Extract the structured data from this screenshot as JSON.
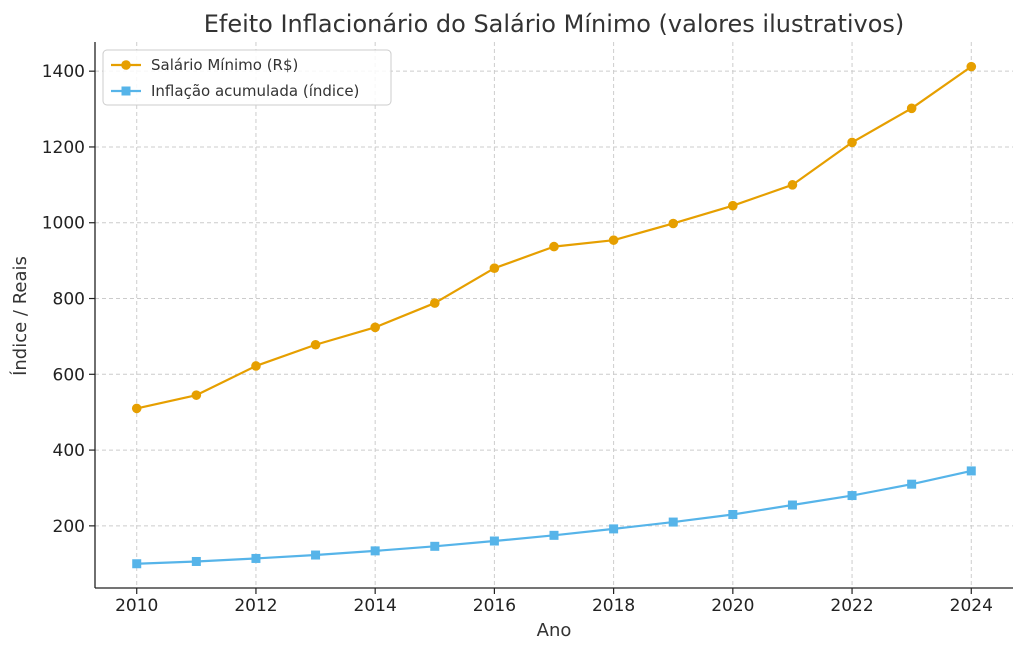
{
  "chart_data": {
    "type": "line",
    "title": "Efeito Inflacionário do Salário Mínimo (valores ilustrativos)",
    "xlabel": "Ano",
    "ylabel": "Índice / Reais",
    "x": [
      2010,
      2011,
      2012,
      2013,
      2014,
      2015,
      2016,
      2017,
      2018,
      2019,
      2020,
      2021,
      2022,
      2023,
      2024
    ],
    "xticks": [
      2010,
      2012,
      2014,
      2016,
      2018,
      2020,
      2022,
      2024
    ],
    "yticks": [
      200,
      400,
      600,
      800,
      1000,
      1200,
      1400
    ],
    "xlim": [
      2009.3,
      2024.7
    ],
    "ylim": [
      36,
      1477
    ],
    "grid": true,
    "legend_position": "top-left",
    "series": [
      {
        "name": "Salário Mínimo (R$)",
        "color": "#E69F00",
        "marker": "circle",
        "values": [
          510,
          545,
          622,
          678,
          724,
          788,
          880,
          937,
          954,
          998,
          1045,
          1100,
          1212,
          1302,
          1412
        ]
      },
      {
        "name": "Inflação acumulada (índice)",
        "color": "#56B4E9",
        "marker": "square",
        "values": [
          100,
          106,
          114,
          123,
          134,
          146,
          160,
          175,
          192,
          210,
          230,
          255,
          280,
          310,
          345
        ]
      }
    ]
  }
}
